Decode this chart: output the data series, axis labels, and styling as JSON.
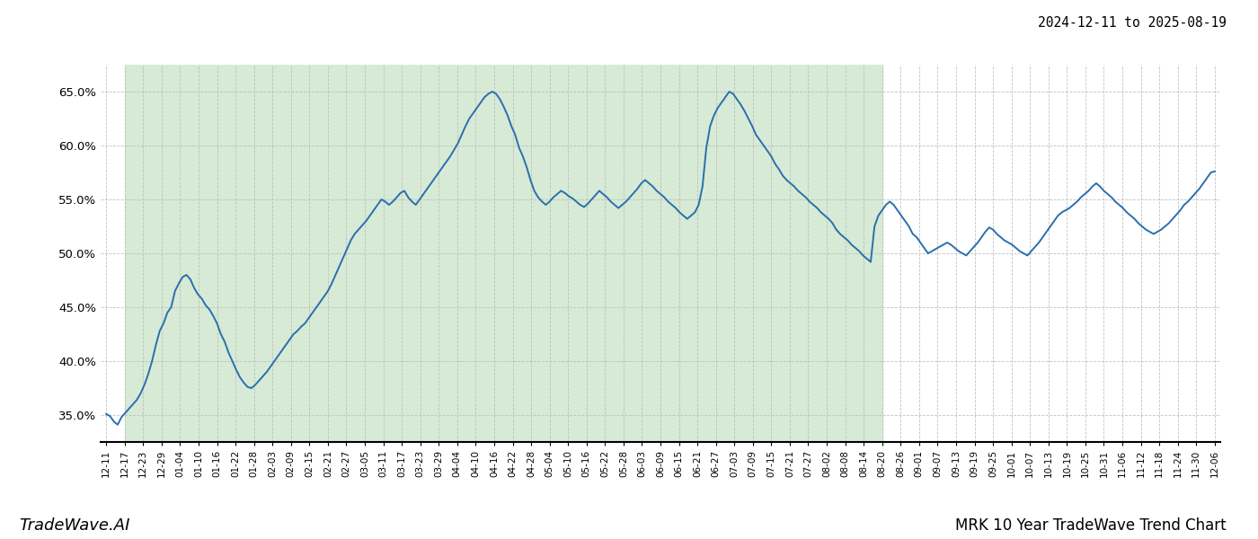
{
  "title_top_right": "2024-12-11 to 2025-08-19",
  "title_bottom_right": "MRK 10 Year TradeWave Trend Chart",
  "title_bottom_left": "TradeWave.AI",
  "line_color": "#2b6fad",
  "shaded_color": "#d6ead6",
  "background_color": "#ffffff",
  "grid_color": "#bbbbbb",
  "ylim": [
    0.325,
    0.675
  ],
  "yticks": [
    0.35,
    0.4,
    0.45,
    0.5,
    0.55,
    0.6,
    0.65
  ],
  "x_labels": [
    "12-11",
    "12-17",
    "12-23",
    "12-29",
    "01-04",
    "01-10",
    "01-16",
    "01-22",
    "01-28",
    "02-03",
    "02-09",
    "02-15",
    "02-21",
    "02-27",
    "03-05",
    "03-11",
    "03-17",
    "03-23",
    "03-29",
    "04-04",
    "04-10",
    "04-16",
    "04-22",
    "04-28",
    "05-04",
    "05-10",
    "05-16",
    "05-22",
    "05-28",
    "06-03",
    "06-09",
    "06-15",
    "06-21",
    "06-27",
    "07-03",
    "07-09",
    "07-15",
    "07-21",
    "07-27",
    "08-02",
    "08-08",
    "08-14",
    "08-20",
    "08-26",
    "09-01",
    "09-07",
    "09-13",
    "09-19",
    "09-25",
    "10-01",
    "10-07",
    "10-13",
    "10-19",
    "10-25",
    "10-31",
    "11-06",
    "11-12",
    "11-18",
    "11-24",
    "11-30",
    "12-06"
  ],
  "values": [
    0.351,
    0.349,
    0.344,
    0.341,
    0.348,
    0.352,
    0.356,
    0.36,
    0.364,
    0.37,
    0.378,
    0.388,
    0.4,
    0.415,
    0.428,
    0.435,
    0.445,
    0.45,
    0.465,
    0.472,
    0.478,
    0.48,
    0.476,
    0.468,
    0.462,
    0.458,
    0.452,
    0.448,
    0.442,
    0.435,
    0.425,
    0.418,
    0.408,
    0.4,
    0.392,
    0.385,
    0.38,
    0.376,
    0.375,
    0.378,
    0.382,
    0.386,
    0.39,
    0.395,
    0.4,
    0.405,
    0.41,
    0.415,
    0.42,
    0.425,
    0.428,
    0.432,
    0.435,
    0.44,
    0.445,
    0.45,
    0.455,
    0.46,
    0.465,
    0.472,
    0.48,
    0.488,
    0.496,
    0.504,
    0.512,
    0.518,
    0.522,
    0.526,
    0.53,
    0.535,
    0.54,
    0.545,
    0.55,
    0.548,
    0.545,
    0.548,
    0.552,
    0.556,
    0.558,
    0.552,
    0.548,
    0.545,
    0.55,
    0.555,
    0.56,
    0.565,
    0.57,
    0.575,
    0.58,
    0.585,
    0.59,
    0.596,
    0.602,
    0.61,
    0.618,
    0.625,
    0.63,
    0.635,
    0.64,
    0.645,
    0.648,
    0.65,
    0.648,
    0.643,
    0.636,
    0.628,
    0.618,
    0.61,
    0.598,
    0.59,
    0.58,
    0.568,
    0.558,
    0.552,
    0.548,
    0.545,
    0.548,
    0.552,
    0.555,
    0.558,
    0.556,
    0.553,
    0.551,
    0.548,
    0.545,
    0.543,
    0.546,
    0.55,
    0.554,
    0.558,
    0.555,
    0.552,
    0.548,
    0.545,
    0.542,
    0.545,
    0.548,
    0.552,
    0.556,
    0.56,
    0.565,
    0.568,
    0.565,
    0.562,
    0.558,
    0.555,
    0.552,
    0.548,
    0.545,
    0.542,
    0.538,
    0.535,
    0.532,
    0.535,
    0.538,
    0.545,
    0.562,
    0.598,
    0.618,
    0.628,
    0.635,
    0.64,
    0.645,
    0.65,
    0.648,
    0.643,
    0.638,
    0.632,
    0.625,
    0.618,
    0.61,
    0.605,
    0.6,
    0.595,
    0.59,
    0.583,
    0.578,
    0.572,
    0.568,
    0.565,
    0.562,
    0.558,
    0.555,
    0.552,
    0.548,
    0.545,
    0.542,
    0.538,
    0.535,
    0.532,
    0.528,
    0.522,
    0.518,
    0.515,
    0.512,
    0.508,
    0.505,
    0.502,
    0.498,
    0.495,
    0.492,
    0.525,
    0.535,
    0.54,
    0.545,
    0.548,
    0.545,
    0.54,
    0.535,
    0.53,
    0.525,
    0.518,
    0.515,
    0.51,
    0.505,
    0.5,
    0.502,
    0.504,
    0.506,
    0.508,
    0.51,
    0.508,
    0.505,
    0.502,
    0.5,
    0.498,
    0.502,
    0.506,
    0.51,
    0.515,
    0.52,
    0.524,
    0.522,
    0.518,
    0.515,
    0.512,
    0.51,
    0.508,
    0.505,
    0.502,
    0.5,
    0.498,
    0.502,
    0.506,
    0.51,
    0.515,
    0.52,
    0.525,
    0.53,
    0.535,
    0.538,
    0.54,
    0.542,
    0.545,
    0.548,
    0.552,
    0.555,
    0.558,
    0.562,
    0.565,
    0.562,
    0.558,
    0.555,
    0.552,
    0.548,
    0.545,
    0.542,
    0.538,
    0.535,
    0.532,
    0.528,
    0.525,
    0.522,
    0.52,
    0.518,
    0.52,
    0.522,
    0.525,
    0.528,
    0.532,
    0.536,
    0.54,
    0.545,
    0.548,
    0.552,
    0.556,
    0.56,
    0.565,
    0.57,
    0.575,
    0.576
  ],
  "shade_start_label": "12-17",
  "shade_end_label": "08-20"
}
